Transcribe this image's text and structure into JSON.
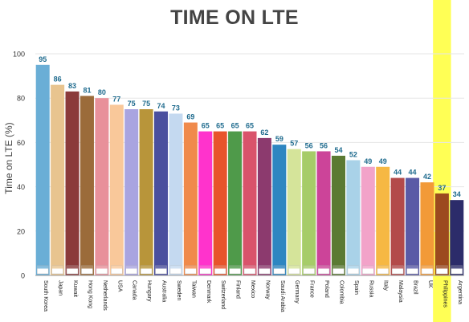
{
  "chart_data": {
    "type": "bar",
    "title": "TIME ON LTE",
    "ylabel": "Time on LTE (%)",
    "xlabel": "",
    "ylim": [
      0,
      100
    ],
    "yticks": [
      0,
      20,
      40,
      60,
      80,
      100
    ],
    "grid": true,
    "legend": "none",
    "categories": [
      "South Korea",
      "Japan",
      "Kuwait",
      "Hong Kong",
      "Netherlands",
      "USA",
      "Canada",
      "Hungary",
      "Australia",
      "Sweden",
      "Taiwan",
      "Denmark",
      "Switzerland",
      "Finland",
      "Mexico",
      "Norway",
      "Saudi Arabia",
      "Germany",
      "France",
      "Poland",
      "Colombia",
      "Spain",
      "Russia",
      "Italy",
      "Malaysia",
      "Brazil",
      "UK",
      "Philippines",
      "Argentina"
    ],
    "values": [
      95,
      86,
      83,
      81,
      80,
      77,
      75,
      75,
      74,
      73,
      69,
      65,
      65,
      65,
      65,
      62,
      59,
      57,
      56,
      56,
      54,
      52,
      49,
      49,
      44,
      44,
      42,
      37,
      34
    ],
    "colors": [
      "#6aaed6",
      "#e8c48f",
      "#8b3a3a",
      "#9b6b3a",
      "#e8909a",
      "#f9c89a",
      "#a9a4e0",
      "#b8953a",
      "#4a4f9e",
      "#c4d9f0",
      "#f08a4b",
      "#ff33cc",
      "#e8542b",
      "#4f9a4a",
      "#d9536b",
      "#8c3a6e",
      "#2e86c1",
      "#d5e49a",
      "#a6cc68",
      "#cc4499",
      "#5b7a33",
      "#a9d2e8",
      "#f2a3c9",
      "#f6b843",
      "#b34a4a",
      "#5a5aa6",
      "#f29a38",
      "#9c4a1f",
      "#2c2c6a"
    ],
    "highlight": {
      "category": "Philippines",
      "color": "#ffff55"
    },
    "value_label_color": "#1f6b8e"
  }
}
